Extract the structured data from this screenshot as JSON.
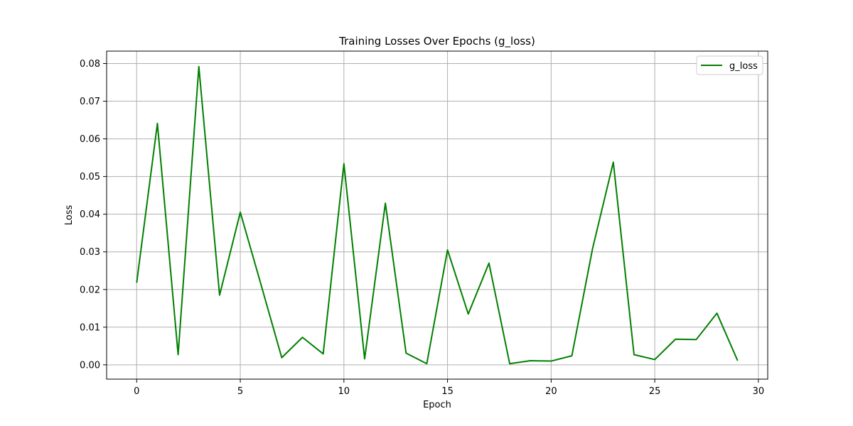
{
  "chart_data": {
    "type": "line",
    "title": "Training Losses Over Epochs (g_loss)",
    "xlabel": "Epoch",
    "ylabel": "Loss",
    "xlim": [
      -1.45,
      30.45
    ],
    "ylim": [
      -0.0038,
      0.0833
    ],
    "xticks": [
      0,
      5,
      10,
      15,
      20,
      25,
      30
    ],
    "yticks": [
      0.0,
      0.01,
      0.02,
      0.03,
      0.04,
      0.05,
      0.06,
      0.07,
      0.08
    ],
    "xtick_labels": [
      "0",
      "5",
      "10",
      "15",
      "20",
      "25",
      "30"
    ],
    "ytick_labels": [
      "0.00",
      "0.01",
      "0.02",
      "0.03",
      "0.04",
      "0.05",
      "0.06",
      "0.07",
      "0.08"
    ],
    "grid": true,
    "legend_position": "top-right",
    "series": [
      {
        "name": "g_loss",
        "color": "#008000",
        "x": [
          0,
          1,
          2,
          3,
          4,
          5,
          6,
          7,
          8,
          9,
          10,
          11,
          12,
          13,
          14,
          15,
          16,
          17,
          18,
          19,
          20,
          21,
          22,
          23,
          24,
          25,
          26,
          27,
          28,
          29
        ],
        "values": [
          0.0218,
          0.0641,
          0.0027,
          0.0792,
          0.0185,
          0.0405,
          0.0213,
          0.0019,
          0.0073,
          0.0029,
          0.0534,
          0.0016,
          0.0429,
          0.0031,
          0.0003,
          0.0305,
          0.0135,
          0.027,
          0.0003,
          0.0011,
          0.001,
          0.0024,
          0.0309,
          0.0538,
          0.0027,
          0.0014,
          0.0068,
          0.0067,
          0.0137,
          0.0011
        ]
      }
    ]
  }
}
